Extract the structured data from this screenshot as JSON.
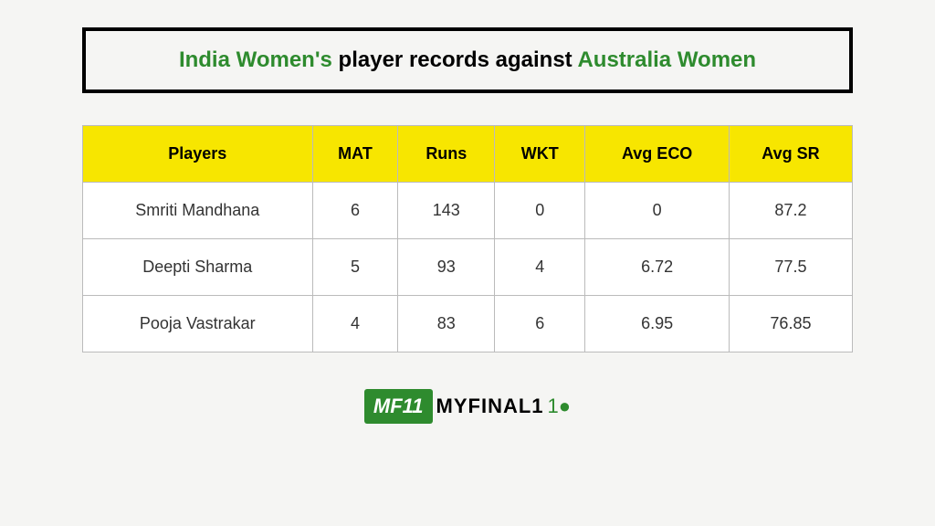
{
  "title": {
    "team1": "India Women's",
    "middle": " player records against ",
    "team2": "Australia Women"
  },
  "table": {
    "columns": [
      "Players",
      "MAT",
      "Runs",
      "WKT",
      "Avg ECO",
      "Avg SR"
    ],
    "rows": [
      [
        "Smriti Mandhana",
        "6",
        "143",
        "0",
        "0",
        "87.2"
      ],
      [
        "Deepti Sharma",
        "5",
        "93",
        "4",
        "6.72",
        "77.5"
      ],
      [
        "Pooja Vastrakar",
        "4",
        "83",
        "6",
        "6.95",
        "76.85"
      ]
    ],
    "header_bg": "#f7e600",
    "border_color": "#bbb",
    "cell_fontsize": 18
  },
  "logo": {
    "badge": "MF11",
    "text": "MYFINAL1",
    "accent": "1●"
  },
  "colors": {
    "green": "#2e8b2e",
    "background": "#f5f5f3",
    "title_border": "#000000"
  }
}
